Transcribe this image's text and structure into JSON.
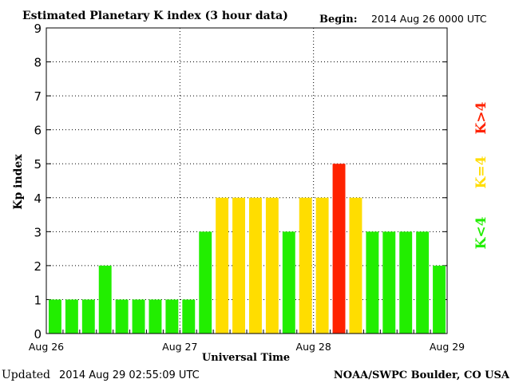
{
  "header": {
    "title": "Estimated Planetary K index (3 hour data)",
    "begin_label": "Begin:",
    "begin_value": "2014 Aug 26 0000 UTC"
  },
  "footer": {
    "updated_label": "Updated",
    "updated_value": "2014 Aug 29 02:55:09 UTC",
    "credit": "NOAA/SWPC Boulder, CO USA"
  },
  "legend": {
    "high": "K>4",
    "equal": "K=4",
    "low": "K<4"
  },
  "colors": {
    "low": "#22ee00",
    "equal": "#ffdd00",
    "high": "#ff2200"
  },
  "chart_data": {
    "type": "bar",
    "title": "Estimated Planetary K index (3 hour data)",
    "xlabel": "Universal Time",
    "ylabel": "Kp index",
    "ylim": [
      0,
      9
    ],
    "yticks": [
      0,
      1,
      2,
      3,
      4,
      5,
      6,
      7,
      8,
      9
    ],
    "xticks": [
      "Aug 26",
      "Aug 27",
      "Aug 28",
      "Aug 29"
    ],
    "grid": true,
    "categories": [
      "Aug 26 00",
      "Aug 26 03",
      "Aug 26 06",
      "Aug 26 09",
      "Aug 26 12",
      "Aug 26 15",
      "Aug 26 18",
      "Aug 26 21",
      "Aug 27 00",
      "Aug 27 03",
      "Aug 27 06",
      "Aug 27 09",
      "Aug 27 12",
      "Aug 27 15",
      "Aug 27 18",
      "Aug 27 21",
      "Aug 28 00",
      "Aug 28 03",
      "Aug 28 06",
      "Aug 28 09",
      "Aug 28 12",
      "Aug 28 15",
      "Aug 28 18",
      "Aug 28 21"
    ],
    "values": [
      1,
      1,
      1,
      2,
      1,
      1,
      1,
      1,
      1,
      3,
      4,
      4,
      4,
      4,
      3,
      4,
      4,
      5,
      4,
      3,
      3,
      3,
      3,
      2
    ]
  }
}
